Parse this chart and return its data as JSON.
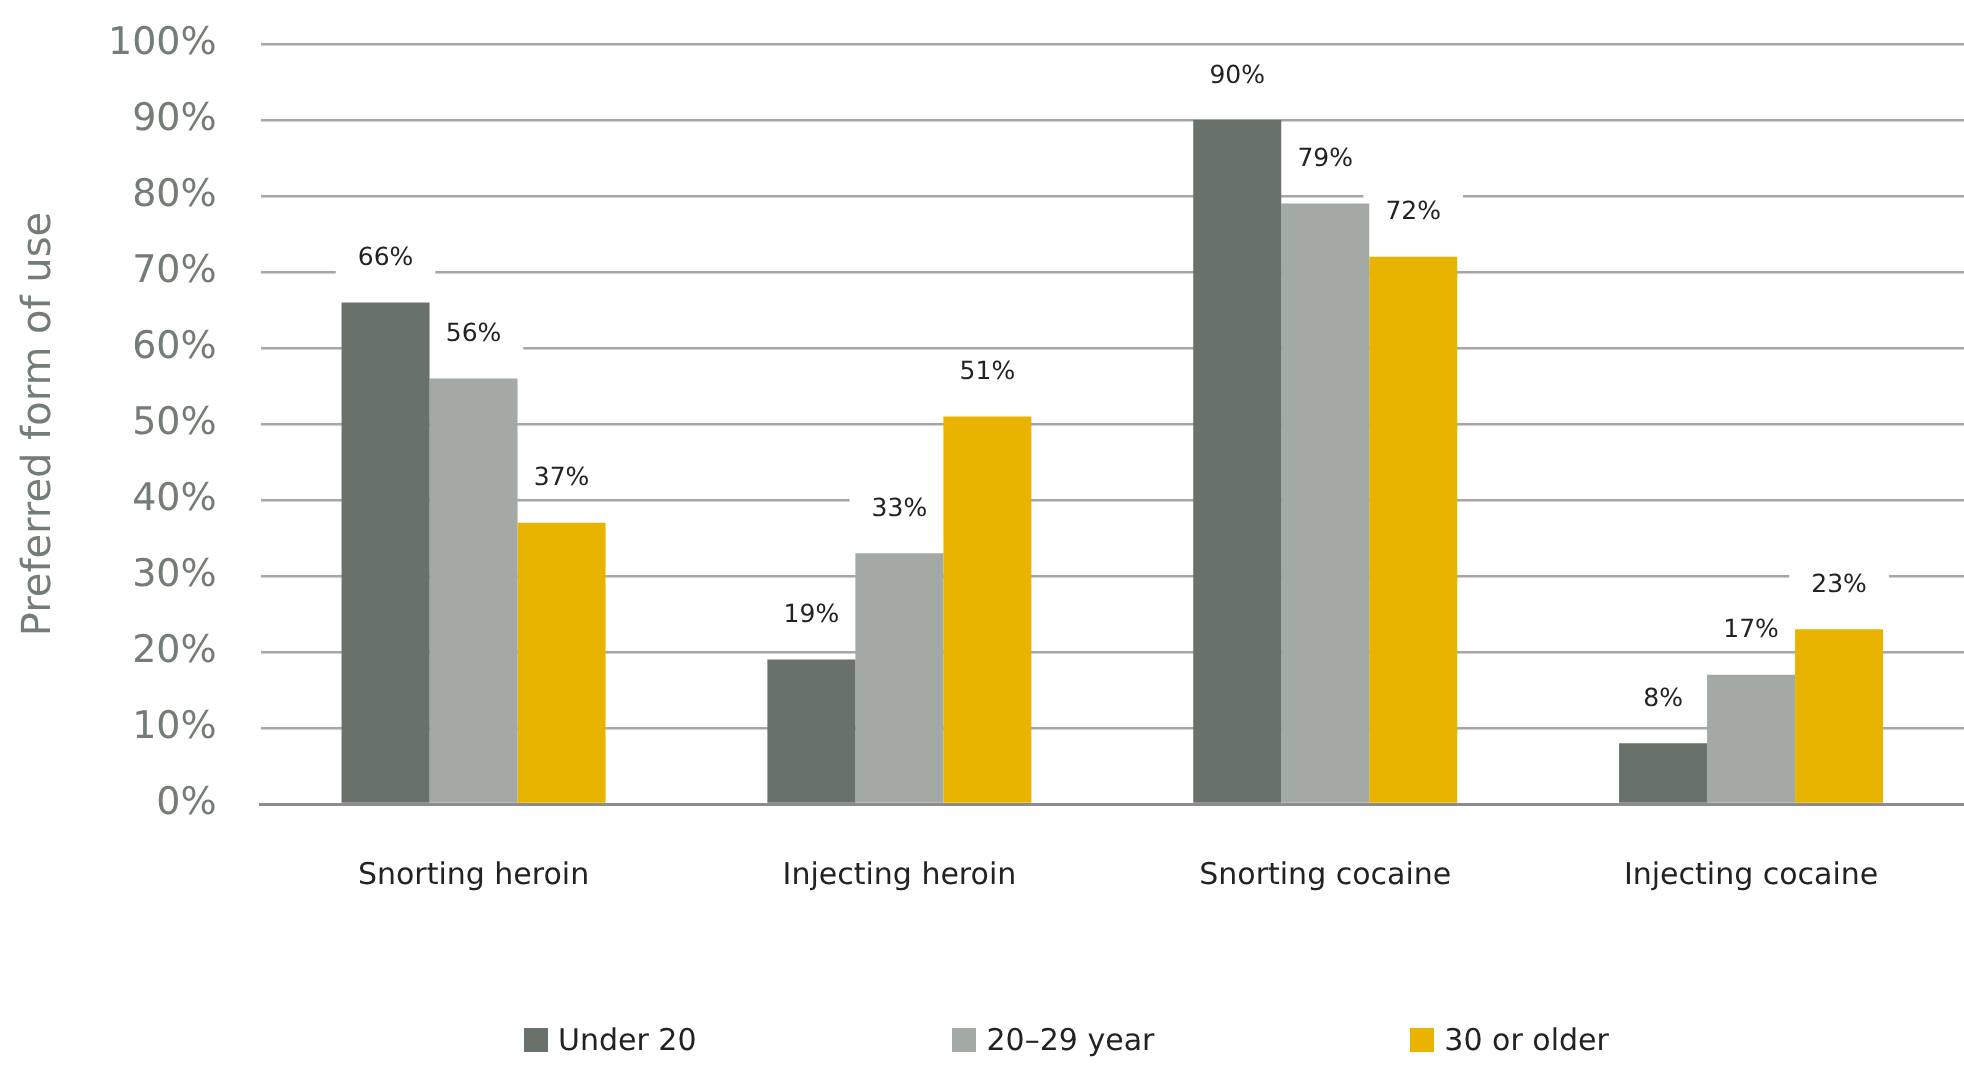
{
  "chart_data": {
    "type": "bar",
    "ylabel": "Preferred form of use",
    "categories": [
      "Snorting heroin",
      "Injecting heroin",
      "Snorting cocaine",
      "Injecting cocaine"
    ],
    "series": [
      {
        "name": "Under 20",
        "color": "#68726a",
        "values": [
          66,
          19,
          90,
          8
        ],
        "value_labels": [
          "66%",
          "19%",
          "90%",
          "8%"
        ]
      },
      {
        "name": "20–29 year",
        "color": "#a3aaa5",
        "values": [
          56,
          33,
          79,
          17
        ],
        "value_labels": [
          "56%",
          "33%",
          "79%",
          "17%"
        ]
      },
      {
        "name": "30 or older",
        "color": "#e8b400",
        "values": [
          37,
          51,
          72,
          23
        ],
        "value_labels": [
          "37%",
          "51%",
          "72%",
          "23%"
        ]
      }
    ],
    "ylim": [
      0,
      100
    ],
    "yticks": [
      {
        "value": 0,
        "label": "0%"
      },
      {
        "value": 10,
        "label": "10%"
      },
      {
        "value": 20,
        "label": "20%"
      },
      {
        "value": 30,
        "label": "30%"
      },
      {
        "value": 40,
        "label": "40%"
      },
      {
        "value": 50,
        "label": "50%"
      },
      {
        "value": 60,
        "label": "60%"
      },
      {
        "value": 70,
        "label": "70%"
      },
      {
        "value": 80,
        "label": "80%"
      },
      {
        "value": 90,
        "label": "90%"
      },
      {
        "value": 100,
        "label": "100%"
      }
    ],
    "grid": "y",
    "legend": "bottom"
  }
}
